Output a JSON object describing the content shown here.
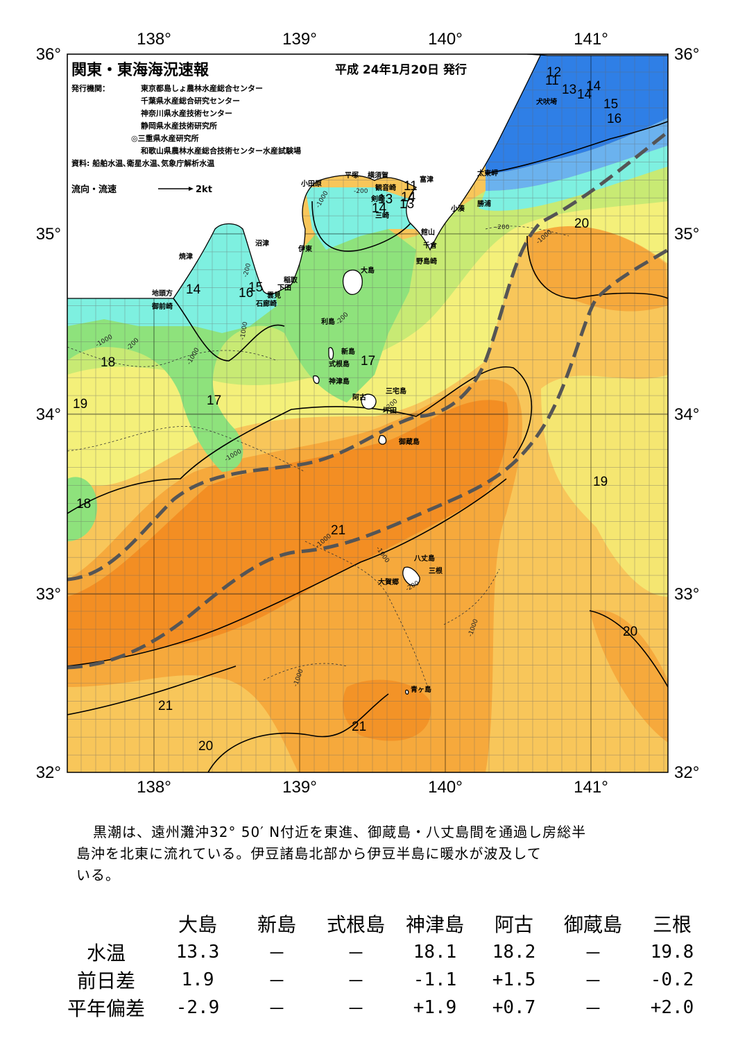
{
  "map": {
    "title": "関東・東海海況速報",
    "issue_date": "平成 24年1月20日 発行",
    "issuers_label": "発行機関：",
    "issuers": [
      "東京都島しょ農林水産総合センター",
      "千葉県水産総合研究センター",
      "神奈川県水産技術センター",
      "静岡県水産技術研究所",
      "◎三重県水産研究所",
      "和歌山県農林水産総合技術センター水産試験場"
    ],
    "sources": "資料: 船舶水温､衛星水温､気象庁解析水温",
    "flow_label": "流向・流速",
    "flow_scale": "2kt",
    "longitude_labels": [
      "138°",
      "139°",
      "140°",
      "141°"
    ],
    "latitude_labels": [
      "36°",
      "35°",
      "34°",
      "33°",
      "32°"
    ],
    "isotherm_labels": [
      "12",
      "11",
      "13",
      "14",
      "14",
      "15",
      "16",
      "11",
      "13",
      "14",
      "13",
      "14",
      "20",
      "14",
      "16",
      "15",
      "17",
      "18",
      "19",
      "17",
      "18",
      "19",
      "21",
      "20",
      "21",
      "21",
      "20"
    ],
    "depth_labels": [
      "-1000",
      "-200",
      "-200",
      "-1000",
      "-1000",
      "-200",
      "-1000",
      "-200",
      "-1000",
      "-200",
      "-1000",
      "-1000",
      "-200",
      "-1000",
      "-1000",
      "-1000",
      "-200"
    ],
    "place_names": [
      "犬吠埼",
      "太東岬",
      "勝浦",
      "小湊",
      "富津",
      "横須賀",
      "観音崎",
      "平塚",
      "小田原",
      "剣崎",
      "三崎",
      "館山",
      "千倉",
      "野島崎",
      "沼津",
      "伊東",
      "焼津",
      "稲取",
      "下田",
      "雲見",
      "石廊崎",
      "地頭方",
      "御前崎",
      "大島",
      "利島",
      "新島",
      "式根島",
      "神津島",
      "三宅島",
      "阿古",
      "坪田",
      "御蔵島",
      "八丈島",
      "三根",
      "大賀郷",
      "青ヶ島"
    ],
    "colors": {
      "land": "#ffffff",
      "warm_core": "#f28a1e",
      "warm": "#f6a93c",
      "mid_warm": "#f8c65a",
      "yellow": "#f4f07a",
      "yellow_green": "#c8ea74",
      "green": "#8ee27c",
      "cyan": "#7ef0e0",
      "blue": "#2f7fe6",
      "kuroshio_axis": "#555555"
    }
  },
  "comment": [
    "黒潮は、遠州灘沖32° 50′ N付近を東進、御蔵島・八丈島間を通過し房総半",
    "島沖を北東に流れている。伊豆諸島北部から伊豆半島に暖水が波及して",
    "いる。"
  ],
  "table": {
    "columns": [
      "大島",
      "新島",
      "式根島",
      "神津島",
      "阿古",
      "御蔵島",
      "三根"
    ],
    "rows": [
      {
        "label": "水温",
        "values": [
          "13.3",
          "－",
          "－",
          "18.1",
          "18.2",
          "－",
          "19.8"
        ]
      },
      {
        "label": "前日差",
        "values": [
          "1.9",
          "－",
          "－",
          "-1.1",
          "+1.5",
          "－",
          "-0.2"
        ]
      },
      {
        "label": "平年偏差",
        "values": [
          "-2.9",
          "－",
          "－",
          "+1.9",
          "+0.7",
          "－",
          "+2.0"
        ]
      }
    ]
  }
}
